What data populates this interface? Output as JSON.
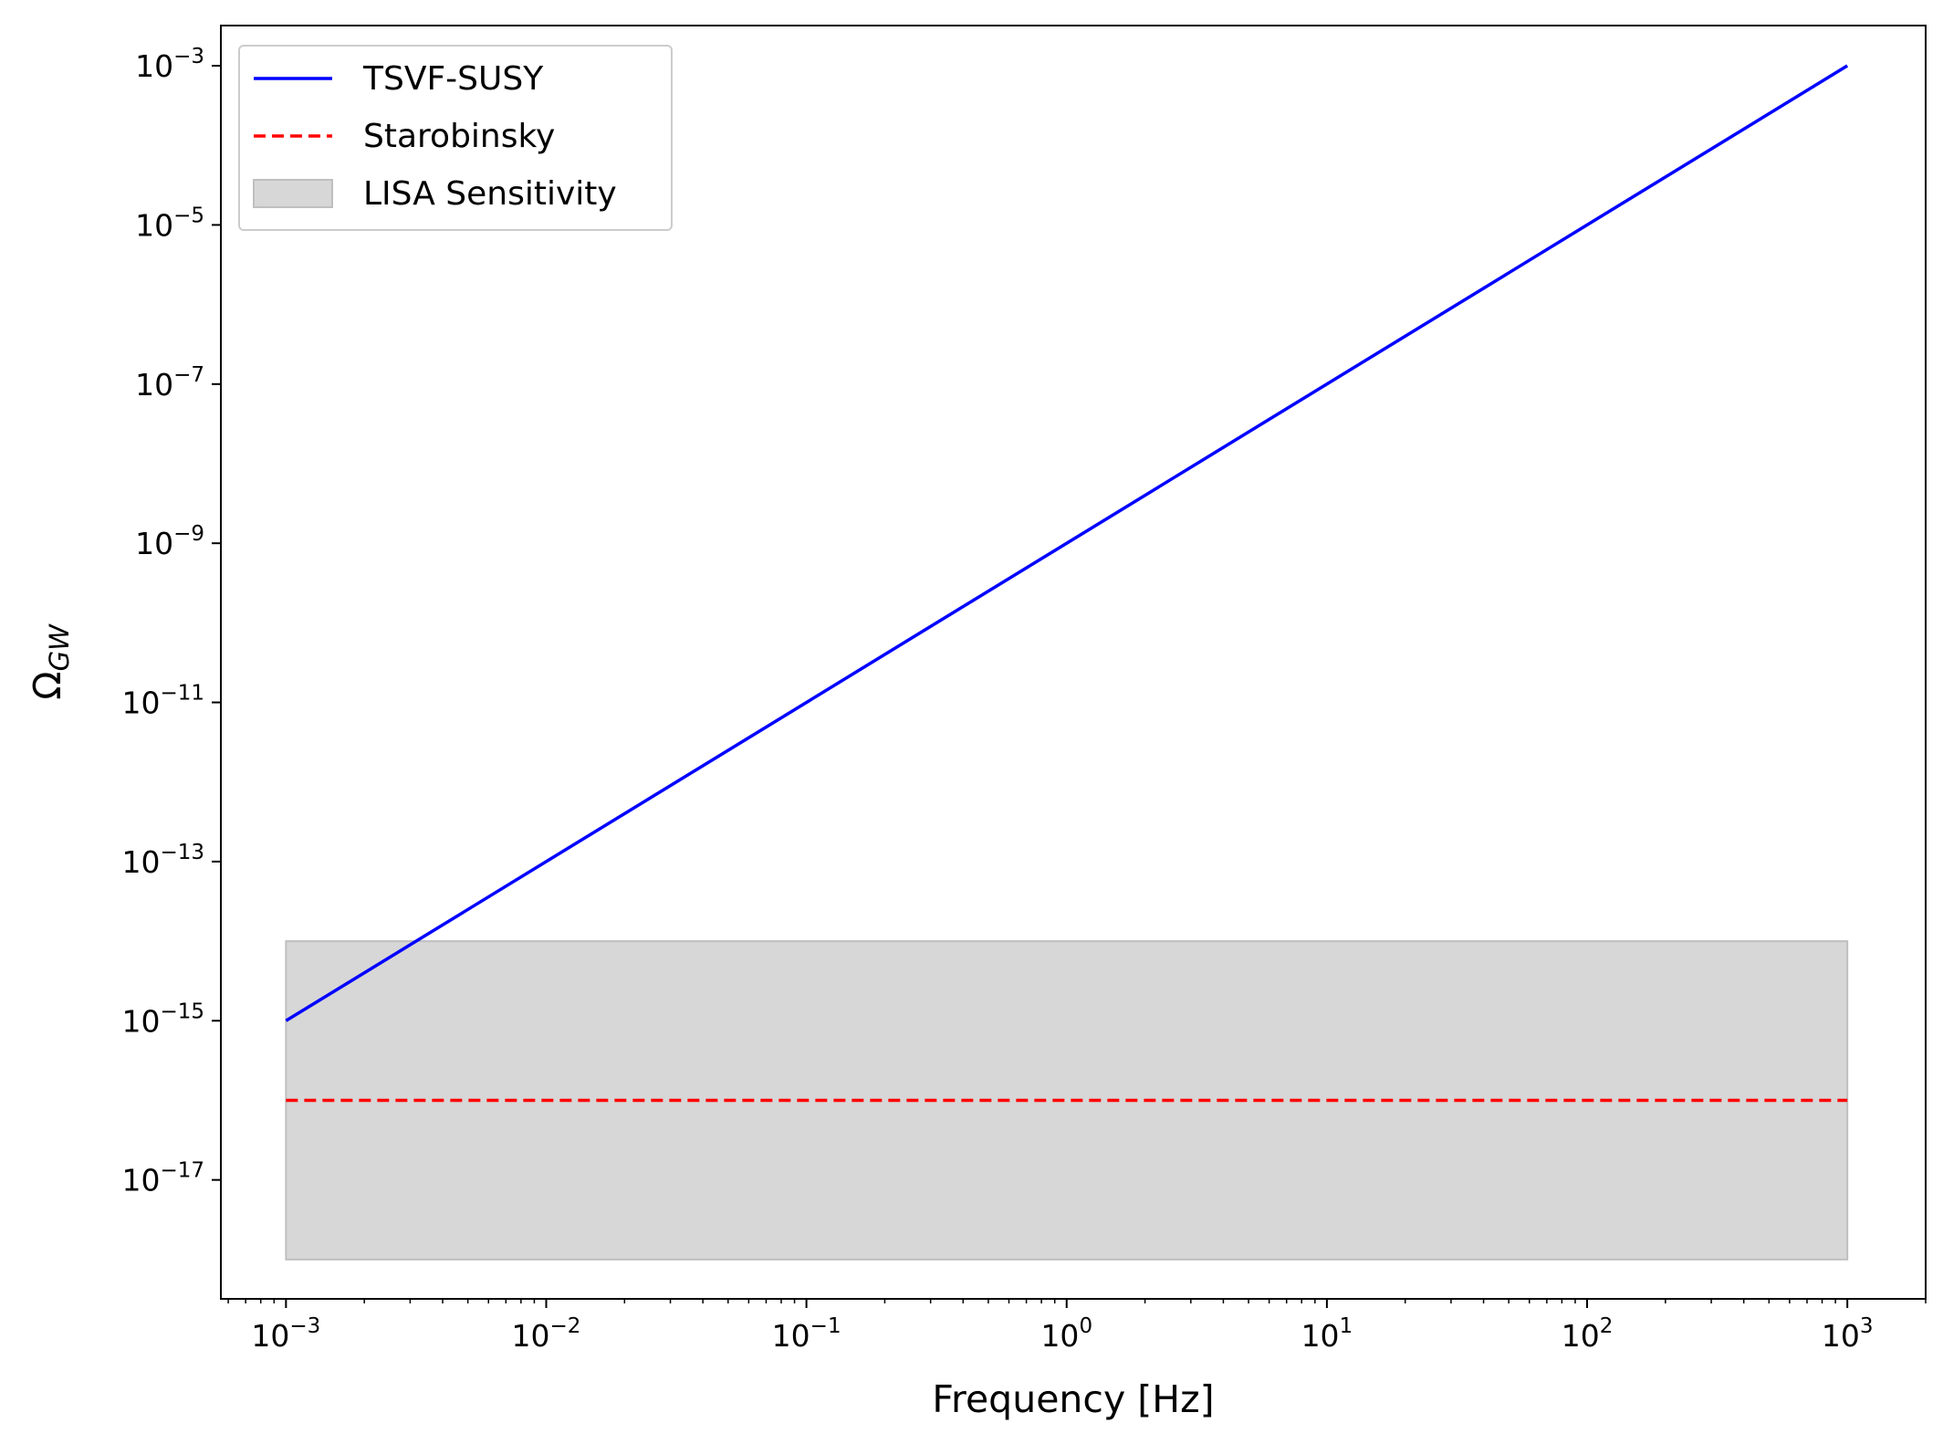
{
  "chart_data": {
    "type": "line",
    "xlabel": "Frequency [Hz]",
    "ylabel": {
      "base": "Ω",
      "sub": "GW"
    },
    "xscale": "log",
    "yscale": "log",
    "xlim": [
      0.000562,
      2000
    ],
    "ylim": [
      3.2e-19,
      0.0032
    ],
    "grid": false,
    "legend_position": "top-left",
    "x_ticks": [
      {
        "value": 0.001,
        "base": "10",
        "exp": "−3"
      },
      {
        "value": 0.01,
        "base": "10",
        "exp": "−2"
      },
      {
        "value": 0.1,
        "base": "10",
        "exp": "−1"
      },
      {
        "value": 1,
        "base": "10",
        "exp": "0"
      },
      {
        "value": 10,
        "base": "10",
        "exp": "1"
      },
      {
        "value": 100,
        "base": "10",
        "exp": "2"
      },
      {
        "value": 1000,
        "base": "10",
        "exp": "3"
      }
    ],
    "y_ticks": [
      {
        "value": 1e-17,
        "base": "10",
        "exp": "−17"
      },
      {
        "value": 1e-15,
        "base": "10",
        "exp": "−15"
      },
      {
        "value": 1e-13,
        "base": "10",
        "exp": "−13"
      },
      {
        "value": 1e-11,
        "base": "10",
        "exp": "−11"
      },
      {
        "value": 1e-09,
        "base": "10",
        "exp": "−9"
      },
      {
        "value": 1e-07,
        "base": "10",
        "exp": "−7"
      },
      {
        "value": 1e-05,
        "base": "10",
        "exp": "−5"
      },
      {
        "value": 0.001,
        "base": "10",
        "exp": "−3"
      }
    ],
    "series": [
      {
        "name": "TSVF-SUSY",
        "kind": "line",
        "style": "solid",
        "color": "#0000ff",
        "x": [
          0.001,
          1000
        ],
        "y": [
          1e-15,
          0.001
        ]
      },
      {
        "name": "Starobinsky",
        "kind": "line",
        "style": "dashed",
        "color": "#ff0000",
        "x": [
          0.001,
          1000
        ],
        "y": [
          1e-16,
          1e-16
        ]
      },
      {
        "name": "LISA Sensitivity",
        "kind": "band",
        "color": "#d7d7d7",
        "edge_color": "#bfbfbf",
        "x": [
          0.001,
          1000
        ],
        "y_low": 1e-18,
        "y_high": 1e-14
      }
    ]
  }
}
